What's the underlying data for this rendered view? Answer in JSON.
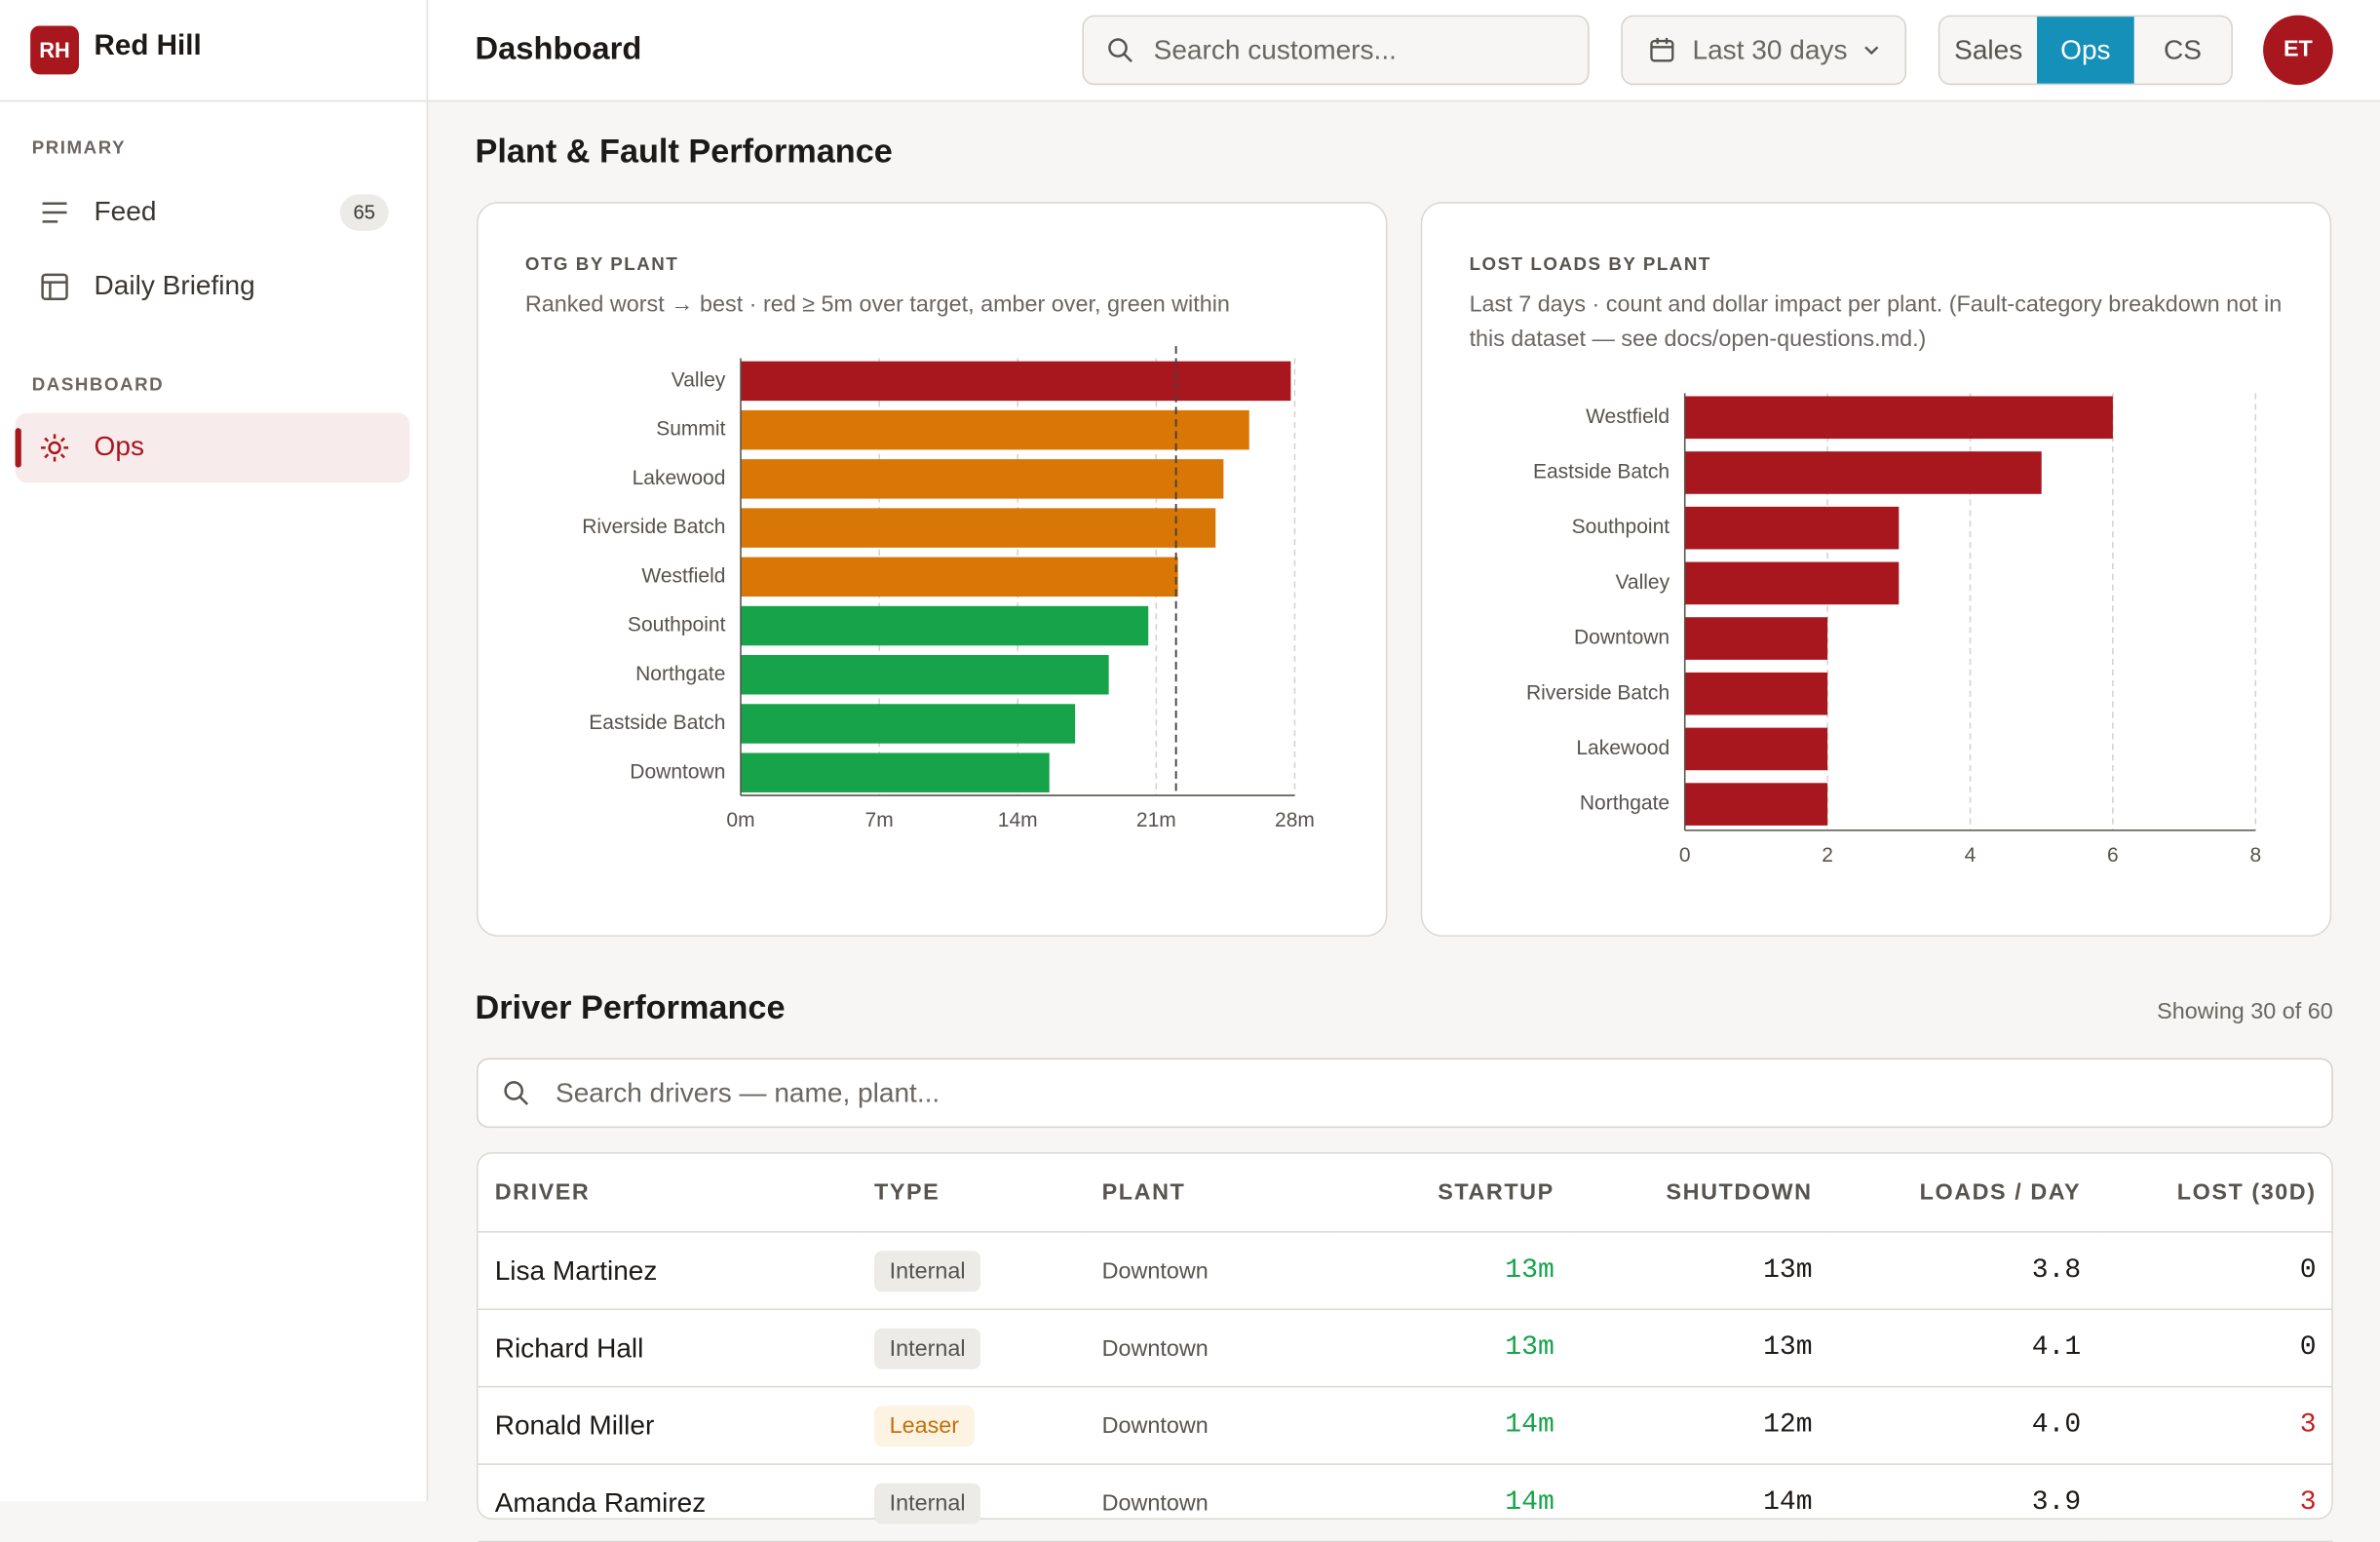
{
  "sidebar": {
    "logo": "RH",
    "brand": "Red Hill",
    "sections": [
      {
        "title": "PRIMARY",
        "items": [
          {
            "label": "Feed",
            "badge": 65
          },
          {
            "label": "Daily Briefing"
          }
        ]
      },
      {
        "title": "DASHBOARD",
        "items": [
          {
            "label": "Ops",
            "active": true
          }
        ]
      }
    ]
  },
  "header": {
    "title": "Dashboard",
    "search_placeholder": "Search customers...",
    "date_range": "Last 30 days",
    "views": [
      "Sales",
      "Ops",
      "CS"
    ],
    "active_view": 1,
    "avatar": "ET"
  },
  "plant_section": {
    "title": "Plant & Fault Performance"
  },
  "chart_data": [
    {
      "type": "bar",
      "orientation": "horizontal",
      "title": "OTG BY PLANT",
      "subtitle": "Ranked worst → best · red ≥ 5m over target, amber over, green within",
      "categories": [
        "Valley",
        "Summit",
        "Lakewood",
        "Riverside Batch",
        "Westfield",
        "Southpoint",
        "Northgate",
        "Eastside Batch",
        "Downtown"
      ],
      "values": [
        27.8,
        25.7,
        24.4,
        24.0,
        22.1,
        20.6,
        18.6,
        16.9,
        15.6
      ],
      "colors": [
        "#a8161e",
        "#d97706",
        "#d97706",
        "#d97706",
        "#d97706",
        "#16a34a",
        "#16a34a",
        "#16a34a",
        "#16a34a"
      ],
      "target": 22,
      "xlim": [
        0,
        28
      ],
      "xticks": [
        {
          "value": 0,
          "label": "0m"
        },
        {
          "value": 7,
          "label": "7m"
        },
        {
          "value": 14,
          "label": "14m"
        },
        {
          "value": 21,
          "label": "21m"
        },
        {
          "value": 28,
          "label": "28m"
        }
      ],
      "grid": true
    },
    {
      "type": "bar",
      "orientation": "horizontal",
      "title": "LOST LOADS BY PLANT",
      "subtitle": "Last 7 days · count and dollar impact per plant. (Fault-category breakdown not in this dataset — see docs/open-questions.md.)",
      "categories": [
        "Westfield",
        "Eastside Batch",
        "Southpoint",
        "Valley",
        "Downtown",
        "Riverside Batch",
        "Lakewood",
        "Northgate"
      ],
      "values": [
        6,
        5,
        3,
        3,
        2,
        2,
        2,
        2
      ],
      "color": "#a8161e",
      "xlim": [
        0,
        8
      ],
      "xticks": [
        0,
        2,
        4,
        6,
        8
      ],
      "grid": true
    }
  ],
  "drivers": {
    "title": "Driver Performance",
    "count_label": "Showing 30 of 60",
    "search_placeholder": "Search drivers — name, plant...",
    "columns": [
      "DRIVER",
      "TYPE",
      "PLANT",
      "STARTUP",
      "SHUTDOWN",
      "LOADS / DAY",
      "LOST (30D)"
    ],
    "type_styles": {
      "Internal": {
        "color": "#57534e",
        "background": "#ecebe8"
      },
      "Leaser": {
        "color": "#c2700a",
        "background": "#fdf3e2"
      }
    },
    "rows": [
      [
        "Lisa Martinez",
        "Internal",
        "Downtown",
        "13m",
        "13m",
        "3.8",
        "0"
      ],
      [
        "Richard Hall",
        "Internal",
        "Downtown",
        "13m",
        "13m",
        "4.1",
        "0"
      ],
      [
        "Ronald Miller",
        "Leaser",
        "Downtown",
        "14m",
        "12m",
        "4.0",
        "3"
      ],
      [
        "Amanda Ramirez",
        "Internal",
        "Downtown",
        "14m",
        "14m",
        "3.9",
        "3"
      ]
    ]
  }
}
